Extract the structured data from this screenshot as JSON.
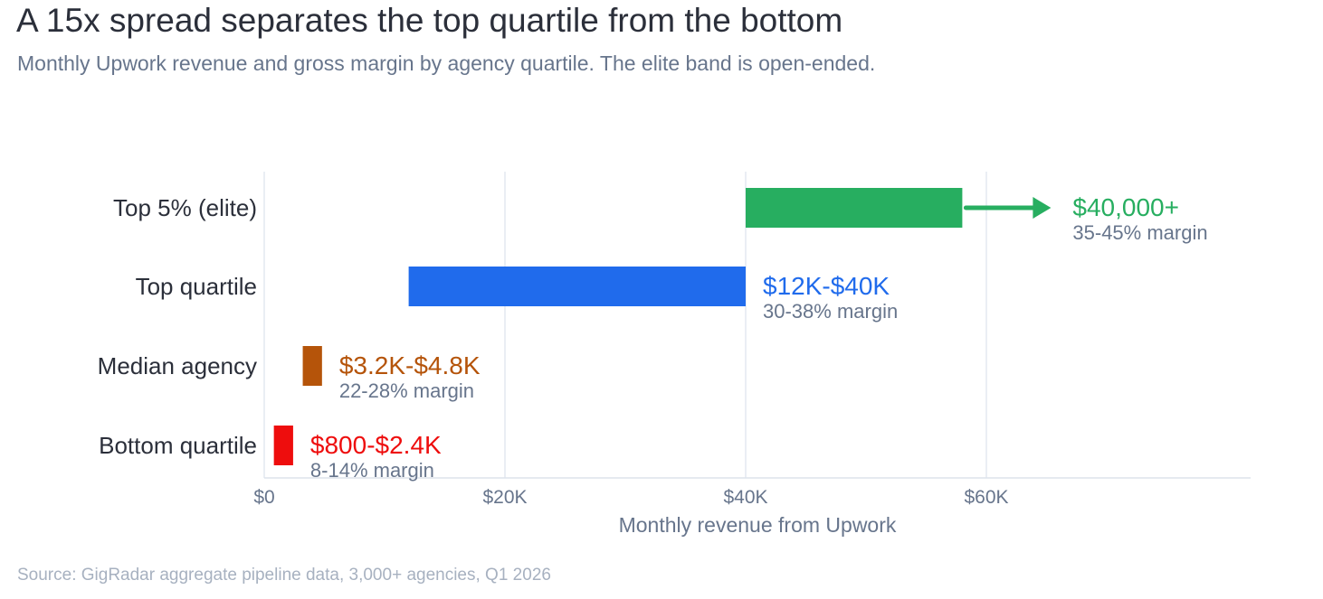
{
  "title": "A 15x spread separates the top quartile from the bottom",
  "subtitle": "Monthly Upwork revenue and gross margin by agency quartile. The elite band is open-ended.",
  "source": "Source: GigRadar aggregate pipeline data, 3,000+ agencies, Q1 2026",
  "chart_data": {
    "type": "bar",
    "orientation": "horizontal-range",
    "xlabel": "Monthly revenue from Upwork",
    "xlim": [
      0,
      82000
    ],
    "x_ticks": [
      0,
      20000,
      40000,
      60000
    ],
    "x_tick_labels": [
      "$0",
      "$20K",
      "$40K",
      "$60K"
    ],
    "grid": true,
    "categories": [
      "Top 5%  (elite)",
      "Top quartile",
      "Median agency",
      "Bottom quartile"
    ],
    "ranges": [
      {
        "category": "Top 5%  (elite)",
        "low": 40000,
        "high": 58000,
        "open_ended": true,
        "range_label": "$40,000+",
        "margin_label": "35-45% margin",
        "color": "#27ae60"
      },
      {
        "category": "Top quartile",
        "low": 12000,
        "high": 40000,
        "open_ended": false,
        "range_label": "$12K-$40K",
        "margin_label": "30-38% margin",
        "color": "#206bec"
      },
      {
        "category": "Median agency",
        "low": 3200,
        "high": 4800,
        "open_ended": false,
        "range_label": "$3.2K-$4.8K",
        "margin_label": "22-28% margin",
        "color": "#b5540a"
      },
      {
        "category": "Bottom quartile",
        "low": 800,
        "high": 2400,
        "open_ended": false,
        "range_label": "$800-$2.4K",
        "margin_label": "8-14% margin",
        "color": "#ee0d0d"
      }
    ]
  }
}
